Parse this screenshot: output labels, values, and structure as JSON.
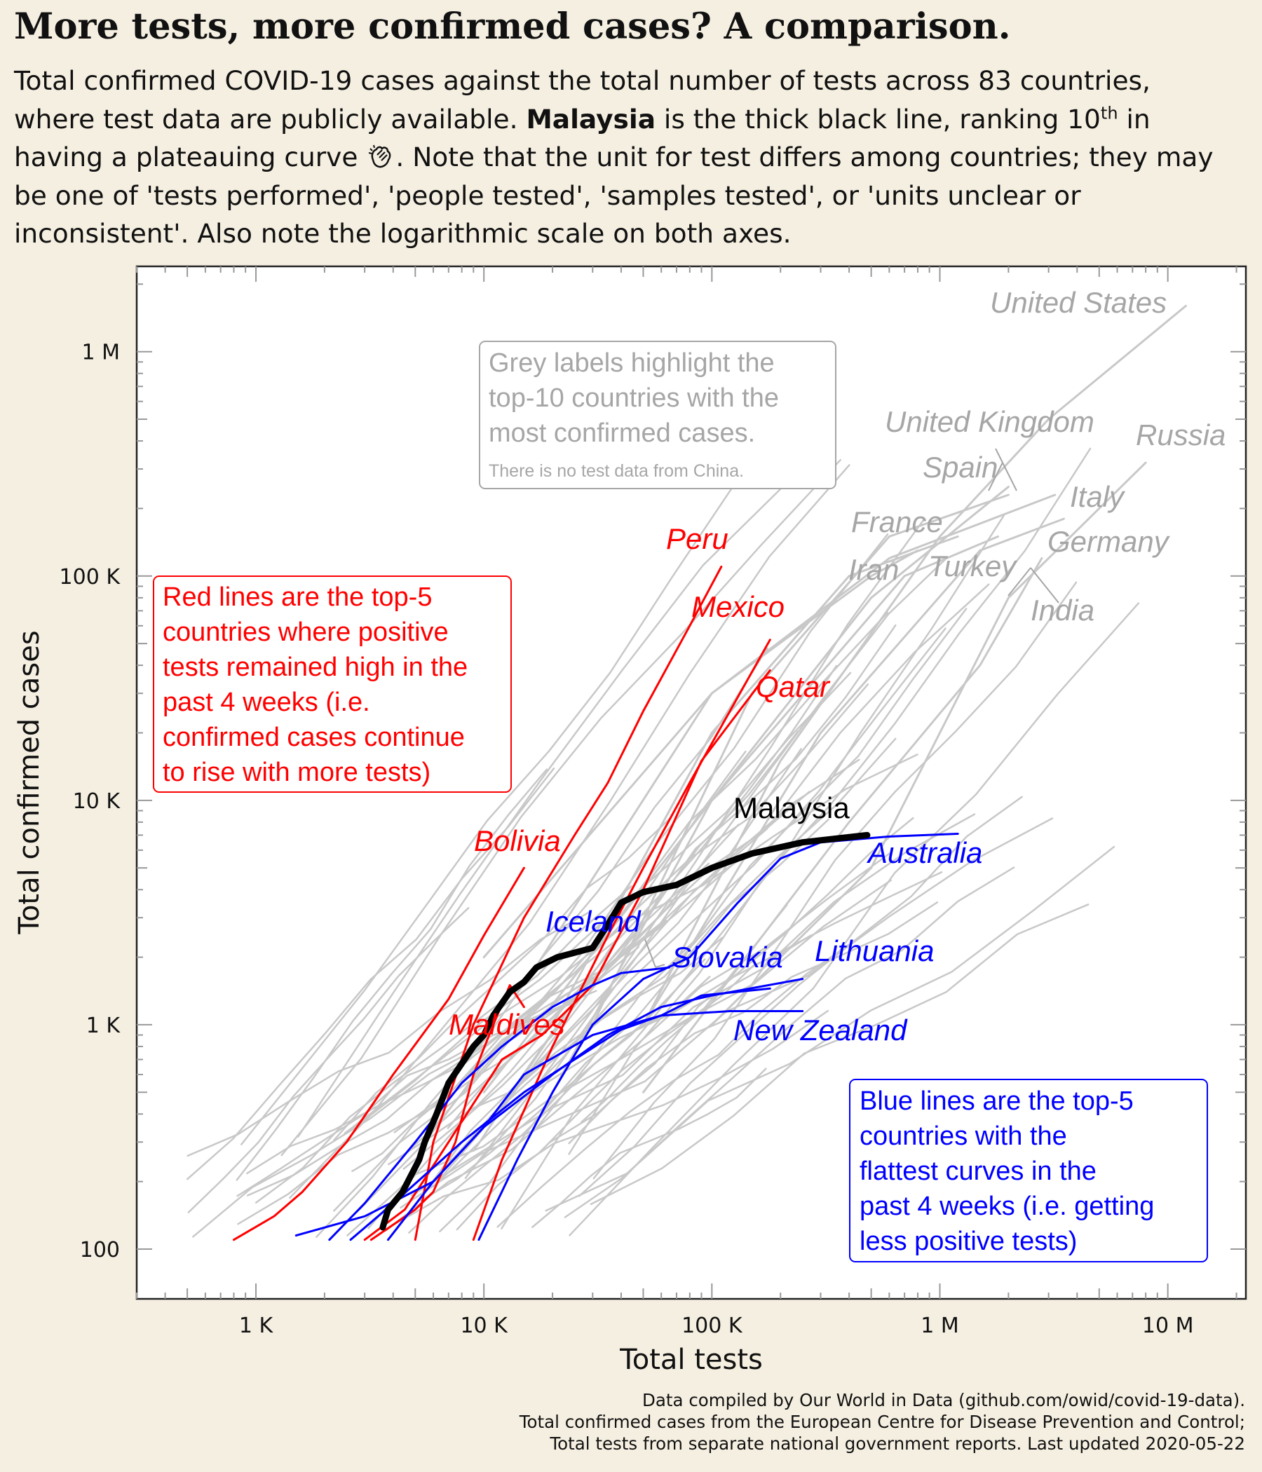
{
  "header": {
    "title": "More tests, more confirmed cases? A comparison.",
    "subtitle_part1": "Total confirmed COVID-19 cases against the total number of tests across 83 countries, where test data are publicly available. ",
    "subtitle_bold": "Malaysia",
    "subtitle_part2": " is the thick black line, ranking 10",
    "subtitle_sup": "th",
    "subtitle_part3": " in having a plateauing curve ",
    "subtitle_part4": ". Note that the unit for test differs among countries; they may be one of 'tests performed', 'people tested', 'samples tested', or 'units unclear or inconsistent'. Also note the logarithmic scale on both axes."
  },
  "caption": {
    "line1": "Data compiled by Our World in Data (github.com/owid/covid-19-data).",
    "line2": "Total confirmed cases from the European Centre for Disease Prevention and Control;",
    "line3": "Total tests from separate national government reports. Last updated 2020-05-22"
  },
  "colors": {
    "background": "#f5efe1",
    "grey": "#c8c8c8",
    "grey_label": "#a6a6a6",
    "red": "#ff0000",
    "blue": "#0000ff",
    "malaysia": "#000000"
  },
  "chart_data": {
    "type": "line",
    "x_scale": "log",
    "y_scale": "log",
    "xlabel": "Total tests",
    "ylabel": "Total confirmed cases",
    "xlim": [
      300,
      22000000
    ],
    "ylim": [
      60,
      2400000
    ],
    "x_ticks": [
      {
        "v": 1000,
        "label": "1 K"
      },
      {
        "v": 10000,
        "label": "10 K"
      },
      {
        "v": 100000,
        "label": "100 K"
      },
      {
        "v": 1000000,
        "label": "1 M"
      },
      {
        "v": 10000000,
        "label": "10 M"
      }
    ],
    "y_ticks": [
      {
        "v": 100,
        "label": "100"
      },
      {
        "v": 1000,
        "label": "1 K"
      },
      {
        "v": 10000,
        "label": "10 K"
      },
      {
        "v": 100000,
        "label": "100 K"
      },
      {
        "v": 1000000,
        "label": "1 M"
      }
    ],
    "grid": false,
    "annotations": {
      "grey_box_main": "Grey labels highlight the top-10 countries with the most confirmed cases.",
      "grey_box_note": "There is no test data from China.",
      "red_box": "Red lines are the top-5 countries where positive tests remained high in the past 4 weeks (i.e. confirmed cases continue to rise with more tests)",
      "blue_box": "Blue lines are the top-5 countries with the flattest curves in the past 4 weeks (i.e. getting less positive tests)"
    },
    "series": [
      {
        "name": "Malaysia",
        "group": "malaysia",
        "points": [
          [
            3600,
            125
          ],
          [
            3800,
            150
          ],
          [
            4400,
            180
          ],
          [
            5200,
            250
          ],
          [
            5500,
            300
          ],
          [
            6200,
            400
          ],
          [
            7000,
            550
          ],
          [
            9000,
            800
          ],
          [
            10000,
            900
          ],
          [
            11000,
            1100
          ],
          [
            13000,
            1400
          ],
          [
            15000,
            1550
          ],
          [
            17000,
            1800
          ],
          [
            21000,
            2000
          ],
          [
            30000,
            2200
          ],
          [
            35000,
            2800
          ],
          [
            40000,
            3500
          ],
          [
            50000,
            3900
          ],
          [
            70000,
            4200
          ],
          [
            100000,
            5000
          ],
          [
            150000,
            5800
          ],
          [
            250000,
            6500
          ],
          [
            480000,
            7000
          ]
        ]
      },
      {
        "name": "Peru",
        "group": "red",
        "points": [
          [
            5000,
            110
          ],
          [
            6000,
            300
          ],
          [
            9000,
            1000
          ],
          [
            15000,
            3000
          ],
          [
            25000,
            7000
          ],
          [
            35000,
            12000
          ],
          [
            50000,
            25000
          ],
          [
            80000,
            60000
          ],
          [
            110000,
            110000
          ]
        ]
      },
      {
        "name": "Mexico",
        "group": "red",
        "points": [
          [
            9000,
            110
          ],
          [
            12000,
            250
          ],
          [
            20000,
            800
          ],
          [
            35000,
            2500
          ],
          [
            50000,
            5000
          ],
          [
            80000,
            12000
          ],
          [
            120000,
            25000
          ],
          [
            180000,
            52000
          ]
        ]
      },
      {
        "name": "Qatar",
        "group": "red",
        "points": [
          [
            3000,
            110
          ],
          [
            4500,
            150
          ],
          [
            7000,
            300
          ],
          [
            12000,
            700
          ],
          [
            18000,
            900
          ],
          [
            30000,
            1500
          ],
          [
            50000,
            4000
          ],
          [
            90000,
            15000
          ],
          [
            180000,
            38000
          ]
        ]
      },
      {
        "name": "Bolivia",
        "group": "red",
        "points": [
          [
            800,
            110
          ],
          [
            1200,
            140
          ],
          [
            1600,
            180
          ],
          [
            2500,
            300
          ],
          [
            4000,
            600
          ],
          [
            7000,
            1300
          ],
          [
            10000,
            2500
          ],
          [
            15000,
            5000
          ]
        ]
      },
      {
        "name": "Maldives",
        "group": "red",
        "points": [
          [
            3200,
            110
          ],
          [
            5000,
            150
          ],
          [
            6000,
            180
          ],
          [
            7500,
            300
          ],
          [
            9000,
            600
          ],
          [
            11000,
            1000
          ],
          [
            13000,
            1500
          ],
          [
            15000,
            1200
          ]
        ]
      },
      {
        "name": "Australia",
        "group": "blue",
        "points": [
          [
            9500,
            110
          ],
          [
            14000,
            250
          ],
          [
            20000,
            500
          ],
          [
            30000,
            1000
          ],
          [
            50000,
            1600
          ],
          [
            80000,
            2000
          ],
          [
            130000,
            3500
          ],
          [
            200000,
            5500
          ],
          [
            300000,
            6500
          ],
          [
            600000,
            6900
          ],
          [
            1200000,
            7100
          ]
        ]
      },
      {
        "name": "Iceland",
        "group": "blue",
        "points": [
          [
            2100,
            110
          ],
          [
            3000,
            160
          ],
          [
            5000,
            300
          ],
          [
            8000,
            550
          ],
          [
            12000,
            800
          ],
          [
            20000,
            1200
          ],
          [
            30000,
            1500
          ],
          [
            40000,
            1700
          ],
          [
            65000,
            1800
          ]
        ]
      },
      {
        "name": "Slovakia",
        "group": "blue",
        "points": [
          [
            2600,
            110
          ],
          [
            4000,
            160
          ],
          [
            8000,
            300
          ],
          [
            15000,
            500
          ],
          [
            25000,
            700
          ],
          [
            40000,
            950
          ],
          [
            60000,
            1100
          ],
          [
            90000,
            1350
          ],
          [
            180000,
            1450
          ]
        ]
      },
      {
        "name": "Lithuania",
        "group": "blue",
        "points": [
          [
            3800,
            110
          ],
          [
            6000,
            200
          ],
          [
            10000,
            350
          ],
          [
            20000,
            600
          ],
          [
            35000,
            900
          ],
          [
            60000,
            1200
          ],
          [
            100000,
            1350
          ],
          [
            250000,
            1600
          ]
        ]
      },
      {
        "name": "New Zealand",
        "group": "blue",
        "points": [
          [
            1500,
            115
          ],
          [
            3000,
            140
          ],
          [
            6000,
            200
          ],
          [
            10000,
            350
          ],
          [
            15000,
            600
          ],
          [
            30000,
            900
          ],
          [
            60000,
            1100
          ],
          [
            120000,
            1150
          ],
          [
            250000,
            1150
          ]
        ]
      },
      {
        "name": "United States",
        "group": "grey",
        "points": [
          [
            50000,
            1000
          ],
          [
            200000,
            15000
          ],
          [
            1000000,
            150000
          ],
          [
            3000000,
            500000
          ],
          [
            12000000,
            1600000
          ]
        ]
      },
      {
        "name": "Russia",
        "group": "grey",
        "points": [
          [
            100000,
            1000
          ],
          [
            500000,
            5000
          ],
          [
            2000000,
            80000
          ],
          [
            8000000,
            320000
          ]
        ]
      },
      {
        "name": "United Kingdom",
        "group": "grey",
        "points": [
          [
            20000,
            500
          ],
          [
            100000,
            10000
          ],
          [
            500000,
            80000
          ],
          [
            2000000,
            250000
          ]
        ]
      },
      {
        "name": "Spain",
        "group": "grey",
        "points": [
          [
            30000,
            1000
          ],
          [
            150000,
            30000
          ],
          [
            600000,
            150000
          ],
          [
            2000000,
            230000
          ]
        ]
      },
      {
        "name": "Italy",
        "group": "grey",
        "points": [
          [
            10000,
            2000
          ],
          [
            100000,
            30000
          ],
          [
            600000,
            120000
          ],
          [
            3200000,
            230000
          ]
        ]
      },
      {
        "name": "Germany",
        "group": "grey",
        "points": [
          [
            50000,
            1000
          ],
          [
            300000,
            20000
          ],
          [
            1500000,
            130000
          ],
          [
            3500000,
            180000
          ]
        ]
      },
      {
        "name": "France",
        "group": "grey",
        "points": [
          [
            20000,
            1000
          ],
          [
            100000,
            20000
          ],
          [
            400000,
            100000
          ],
          [
            1200000,
            150000
          ]
        ]
      },
      {
        "name": "Turkey",
        "group": "grey",
        "points": [
          [
            10000,
            500
          ],
          [
            100000,
            10000
          ],
          [
            700000,
            100000
          ],
          [
            1800000,
            150000
          ]
        ]
      },
      {
        "name": "Iran",
        "group": "grey",
        "points": [
          [
            15000,
            1500
          ],
          [
            100000,
            30000
          ],
          [
            500000,
            100000
          ],
          [
            800000,
            130000
          ]
        ]
      },
      {
        "name": "India",
        "group": "grey",
        "points": [
          [
            50000,
            500
          ],
          [
            400000,
            8000
          ],
          [
            1500000,
            40000
          ],
          [
            2800000,
            120000
          ]
        ]
      }
    ],
    "label_texts": {
      "grey": [
        "United States",
        "Russia",
        "United Kingdom",
        "Spain",
        "Italy",
        "Germany",
        "France",
        "Iran",
        "Turkey",
        "India"
      ],
      "red": [
        "Peru",
        "Mexico",
        "Qatar",
        "Bolivia",
        "Maldives"
      ],
      "blue": [
        "Australia",
        "Iceland",
        "Slovakia",
        "Lithuania",
        "New Zealand"
      ],
      "malaysia": "Malaysia"
    }
  }
}
